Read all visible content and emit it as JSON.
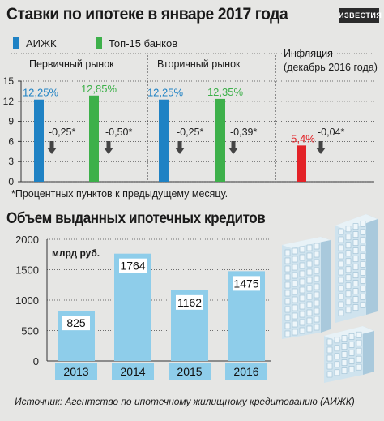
{
  "title": "Ставки по ипотеке в январе 2017 года",
  "logo_text": "ИЗВЕСТИЯ",
  "legend": [
    {
      "label": "АИЖК",
      "color": "#1f82c4"
    },
    {
      "label": "Топ-15 банков",
      "color": "#3db04a"
    }
  ],
  "inflation_color": "#e32227",
  "footnote": "*Процентных пунктов к предыдущему месяцу.",
  "title2": "Объем выданных ипотечных кредитов",
  "unit_label": "млрд руб.",
  "source": "Источник: Агентство по ипотечному жилищному кредитованию (АИЖК)",
  "chart_data": [
    {
      "type": "bar",
      "title": "Ставки по ипотеке в январе 2017 года",
      "ylim": [
        0,
        15
      ],
      "yticks": [
        0,
        3,
        6,
        9,
        12,
        15
      ],
      "groups": [
        {
          "label": "Первичный рынок",
          "bars": [
            {
              "series": "АИЖК",
              "value": 12.25,
              "label": "12,25%",
              "change": "-0,25*"
            },
            {
              "series": "Топ-15 банков",
              "value": 12.85,
              "label": "12,85%",
              "change": "-0,50*"
            }
          ]
        },
        {
          "label": "Вторичный рынок",
          "bars": [
            {
              "series": "АИЖК",
              "value": 12.25,
              "label": "12,25%",
              "change": "-0,25*"
            },
            {
              "series": "Топ-15 банков",
              "value": 12.35,
              "label": "12,35%",
              "change": "-0,39*"
            }
          ]
        },
        {
          "label": "Инфляция\n(декабрь 2016 года)",
          "bars": [
            {
              "series": "Инфляция",
              "value": 5.4,
              "label": "5,4%",
              "change": "-0,04*"
            }
          ]
        }
      ]
    },
    {
      "type": "bar",
      "title": "Объем выданных ипотечных кредитов",
      "ylabel": "млрд руб.",
      "ylim": [
        0,
        2000
      ],
      "yticks": [
        0,
        500,
        1000,
        1500,
        2000
      ],
      "categories": [
        "2013",
        "2014",
        "2015",
        "2016"
      ],
      "values": [
        825,
        1764,
        1162,
        1475
      ],
      "color": "#8ecdea"
    }
  ]
}
